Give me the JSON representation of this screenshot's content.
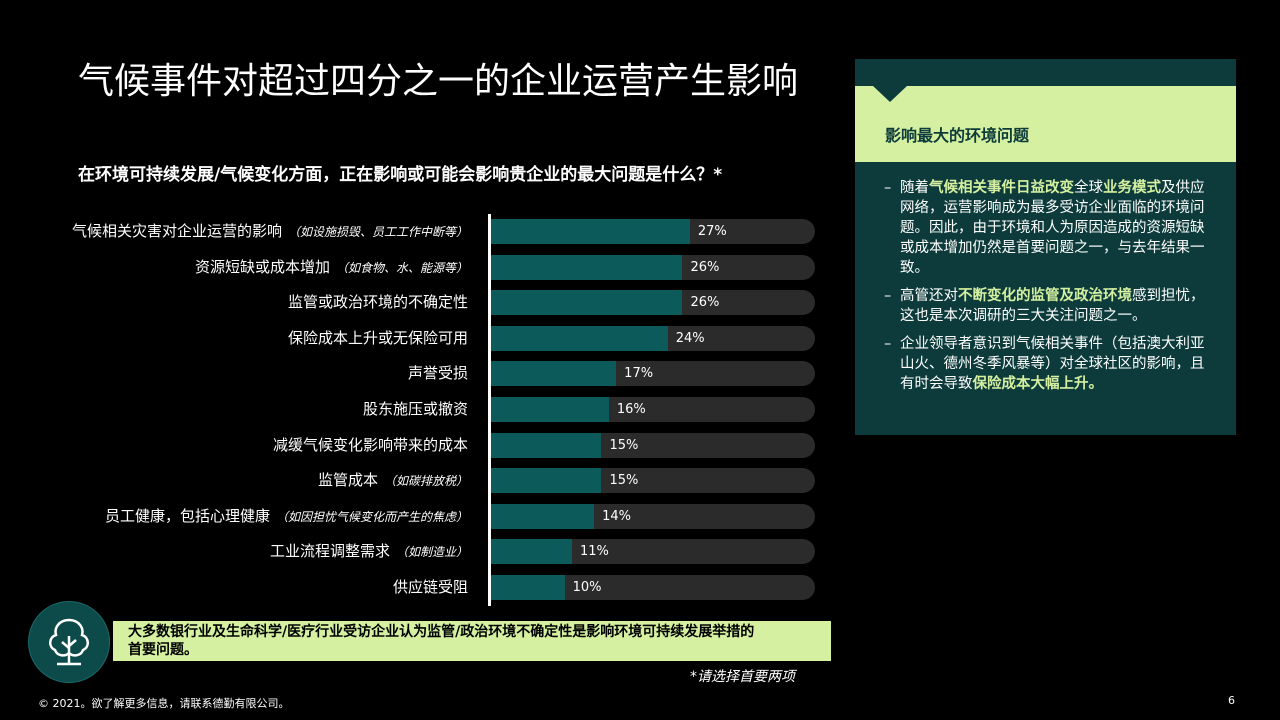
{
  "title": "气候事件对超过四分之一的企业运营产生影响",
  "question": "在环境可持续发展/气候变化方面，正在影响或可能会影响贵企业的最大问题是什么？*",
  "chart_data": {
    "type": "bar",
    "orientation": "horizontal",
    "categories": [
      "气候相关灾害对企业运营的影响",
      "资源短缺或成本增加",
      "监管或政治环境的不确定性",
      "保险成本上升或无保险可用",
      "声誉受损",
      "股东施压或撤资",
      "减缓气候变化影响带来的成本",
      "监管成本",
      "员工健康，包括心理健康",
      "工业流程调整需求",
      "供应链受阻"
    ],
    "category_notes": [
      "（如设施损毁、员工工作中断等）",
      "（如食物、水、能源等）",
      "",
      "",
      "",
      "",
      "",
      "（如碳排放税）",
      "（如因担忧气候变化而产生的焦虑）",
      "（如制造业）",
      ""
    ],
    "values": [
      27,
      26,
      26,
      24,
      17,
      16,
      15,
      15,
      14,
      11,
      10
    ],
    "value_labels": [
      "27%",
      "26%",
      "26%",
      "24%",
      "17%",
      "16%",
      "15%",
      "15%",
      "14%",
      "11%",
      "10%"
    ],
    "xlim": [
      0,
      100
    ],
    "colors": {
      "bar": "#0d5a5a",
      "track": "#2b2b2b"
    }
  },
  "panel": {
    "title": "影响最大的环境问题",
    "bullets": [
      {
        "dash": "–",
        "parts": [
          {
            "t": "随着",
            "hl": false
          },
          {
            "t": "气候相关事件日益改变",
            "hl": true
          },
          {
            "t": "全球",
            "hl": false
          },
          {
            "t": "业务模式",
            "hl": true
          },
          {
            "t": "及供应网络，运营影响成为最多受访企业面临的环境问题。因此，由于环境和人为原因造成的资源短缺或成本增加仍然是首要问题之一，与去年结果一致。",
            "hl": false
          }
        ]
      },
      {
        "dash": "–",
        "parts": [
          {
            "t": "高管还对",
            "hl": false
          },
          {
            "t": "不断变化的监管及政治环境",
            "hl": true
          },
          {
            "t": "感到担忧，这也是本次调研的三大关注问题之一。",
            "hl": false
          }
        ]
      },
      {
        "dash": "–",
        "parts": [
          {
            "t": "企业领导者意识到气候相关事件（包括澳大利亚山火、德州冬季风暴等）对全球社区的影响，且有时会导致",
            "hl": false
          },
          {
            "t": "保险成本大幅上升。",
            "hl": true
          }
        ]
      }
    ]
  },
  "callout": "大多数银行业及生命科学/医疗行业受访企业认为监管/政治环境不确定性是影响环境可持续发展举措的首要问题。",
  "footnote": "*请选择首要两项",
  "copyright": "© 2021。欲了解更多信息，请联系德勤有限公司。",
  "page_number": "6",
  "icons": {
    "callout_icon": "tree-icon"
  },
  "colors": {
    "accent": "#d4f0a0",
    "panel_bg": "#0d3b3b",
    "icon_bg": "#0d4a4a"
  }
}
